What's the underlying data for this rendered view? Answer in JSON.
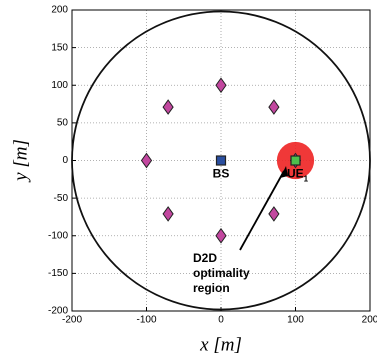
{
  "chart_data": {
    "type": "scatter",
    "xlabel": "x [m]",
    "ylabel": "y [m]",
    "xlim": [
      -200,
      200
    ],
    "ylim": [
      -200,
      200
    ],
    "xticks": [
      -200,
      -100,
      0,
      100,
      200
    ],
    "yticks": [
      -200,
      -150,
      -100,
      -50,
      0,
      50,
      100,
      150,
      200
    ],
    "grid": true,
    "circle_radius": 200,
    "region": {
      "x": 100,
      "y": 0,
      "radius": 25,
      "color": "#ee2222",
      "lines": [
        "D2D",
        "optimality",
        "region"
      ]
    },
    "series": [
      {
        "marker": "diamond",
        "color": "#c2479f",
        "x": [
          0,
          71,
          100,
          71,
          0,
          -71,
          -100,
          -71
        ],
        "y": [
          100,
          71,
          0,
          -71,
          -100,
          -71,
          0,
          71
        ]
      },
      {
        "name": "BS",
        "marker": "square",
        "color": "#2a4fa0",
        "x": [
          0
        ],
        "y": [
          0
        ]
      },
      {
        "name": "UE",
        "subscript": "1",
        "marker": "square",
        "color": "#4cbf4c",
        "x": [
          100
        ],
        "y": [
          0
        ]
      }
    ]
  }
}
